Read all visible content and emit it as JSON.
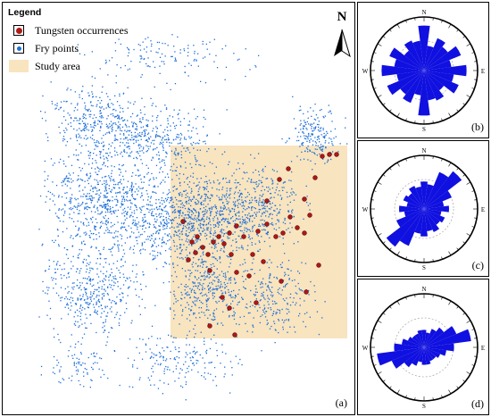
{
  "legend": {
    "title": "Legend",
    "items": [
      {
        "label": "Tungsten occurrences",
        "icon": "red-dot-icon",
        "color": "#b01818"
      },
      {
        "label": "Fry points",
        "icon": "blue-dot-icon",
        "color": "#1e6fd9"
      },
      {
        "label": "Study area",
        "icon": "tan-swatch-icon",
        "color": "#f8e4bf"
      }
    ]
  },
  "north_arrow": {
    "label": "N"
  },
  "panels": {
    "a": {
      "label": "(a)"
    },
    "b": {
      "label": "(b)"
    },
    "c": {
      "label": "(c)"
    },
    "d": {
      "label": "(d)"
    }
  },
  "compass": {
    "n": "N",
    "e": "E",
    "s": "S",
    "w": "W"
  },
  "colors": {
    "fry": "#1e6fd9",
    "occurrence": "#b01818",
    "study_area": "#f8e4bf",
    "rose": "#1010e0"
  }
}
